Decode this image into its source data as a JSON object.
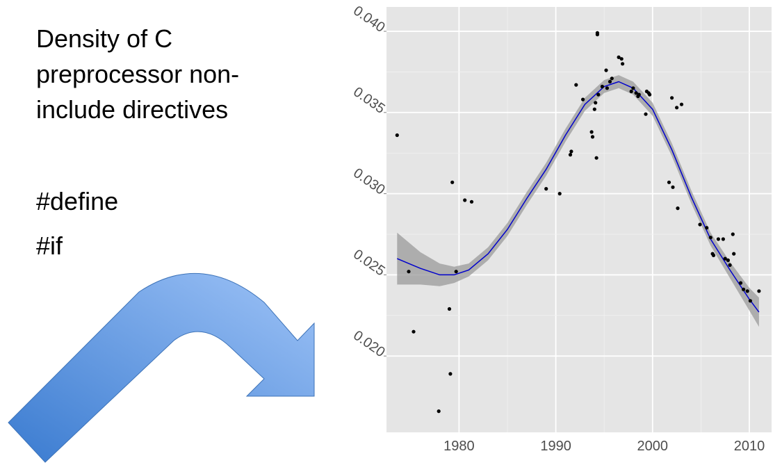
{
  "slide": {
    "title_lines": [
      "Density of C",
      "preprocessor non-",
      "include directives"
    ],
    "directives": [
      "#define",
      "#if"
    ]
  },
  "colors": {
    "panel_bg": "#e5e5e5",
    "grid": "#ffffff",
    "fit_line": "#0000cc",
    "ribbon": "#999999",
    "points": "#000000",
    "arrow_dark": "#3a7bd0",
    "arrow_light": "#9ec3f7"
  },
  "icons": {
    "arrow": "curved-arrow-icon"
  },
  "chart_data": {
    "type": "scatter",
    "title": "",
    "xlabel": "",
    "ylabel": "",
    "xlim": [
      1972.5,
      2012.3
    ],
    "ylim": [
      0.0153,
      0.0415
    ],
    "x_ticks": [
      1980,
      1990,
      2000,
      2010
    ],
    "y_ticks": [
      0.02,
      0.025,
      0.03,
      0.035,
      0.04
    ],
    "x_tick_labels": [
      "1980",
      "1990",
      "2000",
      "2010"
    ],
    "y_tick_labels": [
      "0.020",
      "0.025",
      "0.030",
      "0.035",
      "0.040"
    ],
    "grid": true,
    "points": [
      [
        1973.6,
        0.0336
      ],
      [
        1974.8,
        0.0252
      ],
      [
        1975.3,
        0.0215
      ],
      [
        1977.9,
        0.0166
      ],
      [
        1979.0,
        0.0229
      ],
      [
        1979.1,
        0.0189
      ],
      [
        1979.3,
        0.0307
      ],
      [
        1979.7,
        0.0252
      ],
      [
        1980.6,
        0.0296
      ],
      [
        1981.3,
        0.0295
      ],
      [
        1989.0,
        0.0303
      ],
      [
        1990.4,
        0.03
      ],
      [
        1991.5,
        0.0324
      ],
      [
        1991.6,
        0.0326
      ],
      [
        1992.1,
        0.0367
      ],
      [
        1992.8,
        0.0358
      ],
      [
        1993.7,
        0.0338
      ],
      [
        1993.8,
        0.0335
      ],
      [
        1994.0,
        0.0352
      ],
      [
        1994.1,
        0.0356
      ],
      [
        1994.2,
        0.0322
      ],
      [
        1994.3,
        0.0399
      ],
      [
        1994.3,
        0.0398
      ],
      [
        1994.4,
        0.0361
      ],
      [
        1994.8,
        0.0366
      ],
      [
        1995.2,
        0.0376
      ],
      [
        1995.3,
        0.0365
      ],
      [
        1995.6,
        0.0369
      ],
      [
        1995.8,
        0.0371
      ],
      [
        1996.5,
        0.0384
      ],
      [
        1996.8,
        0.0383
      ],
      [
        1996.9,
        0.038
      ],
      [
        1997.8,
        0.0363
      ],
      [
        1998.0,
        0.0365
      ],
      [
        1998.3,
        0.0362
      ],
      [
        1998.5,
        0.036
      ],
      [
        1998.6,
        0.0361
      ],
      [
        1999.3,
        0.0349
      ],
      [
        1999.4,
        0.0363
      ],
      [
        1999.6,
        0.0362
      ],
      [
        1999.7,
        0.0361
      ],
      [
        2001.7,
        0.0307
      ],
      [
        2002.0,
        0.0359
      ],
      [
        2002.1,
        0.0304
      ],
      [
        2002.5,
        0.0353
      ],
      [
        2002.6,
        0.0291
      ],
      [
        2003.0,
        0.0355
      ],
      [
        2004.9,
        0.0281
      ],
      [
        2005.6,
        0.0279
      ],
      [
        2006.0,
        0.0273
      ],
      [
        2006.2,
        0.0263
      ],
      [
        2006.3,
        0.0262
      ],
      [
        2006.8,
        0.0272
      ],
      [
        2007.3,
        0.0272
      ],
      [
        2007.5,
        0.026
      ],
      [
        2007.8,
        0.0259
      ],
      [
        2008.0,
        0.0256
      ],
      [
        2008.3,
        0.0275
      ],
      [
        2008.4,
        0.0263
      ],
      [
        2009.1,
        0.0245
      ],
      [
        2009.4,
        0.0241
      ],
      [
        2009.8,
        0.024
      ],
      [
        2010.1,
        0.0234
      ],
      [
        2011.0,
        0.024
      ]
    ],
    "smooth": {
      "x": [
        1973.6,
        1976,
        1978,
        1979.5,
        1981,
        1983,
        1985,
        1987,
        1989,
        1991,
        1993,
        1995,
        1996.5,
        1998,
        2000,
        2002,
        2004,
        2006,
        2008,
        2010,
        2011
      ],
      "y": [
        0.026,
        0.0254,
        0.025,
        0.025,
        0.0253,
        0.0263,
        0.0278,
        0.0297,
        0.0315,
        0.0336,
        0.0355,
        0.0366,
        0.0369,
        0.0365,
        0.0352,
        0.0327,
        0.0298,
        0.0272,
        0.0253,
        0.0235,
        0.0227
      ],
      "lower": [
        0.0244,
        0.0244,
        0.0243,
        0.0245,
        0.0249,
        0.0259,
        0.0274,
        0.0293,
        0.0311,
        0.0332,
        0.0351,
        0.0362,
        0.0365,
        0.0361,
        0.0348,
        0.0323,
        0.0294,
        0.0268,
        0.0248,
        0.0228,
        0.0218
      ],
      "upper": [
        0.0276,
        0.0264,
        0.0257,
        0.0255,
        0.0257,
        0.0267,
        0.0282,
        0.0301,
        0.0319,
        0.034,
        0.0359,
        0.037,
        0.0373,
        0.0369,
        0.0356,
        0.0331,
        0.0302,
        0.0276,
        0.0258,
        0.0242,
        0.0236
      ]
    }
  }
}
